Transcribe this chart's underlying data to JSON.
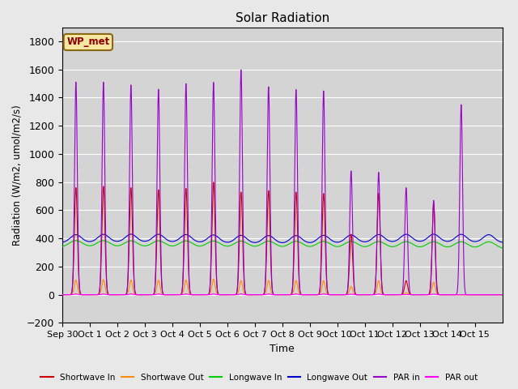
{
  "title": "Solar Radiation",
  "ylabel": "Radiation (W/m2, umol/m2/s)",
  "xlabel": "Time",
  "ylim": [
    -200,
    1900
  ],
  "yticks": [
    -200,
    0,
    200,
    400,
    600,
    800,
    1000,
    1200,
    1400,
    1600,
    1800
  ],
  "background_color": "#e8e8e8",
  "plot_bg_color": "#d4d4d4",
  "annotation_text": "WP_met",
  "annotation_bg": "#f5e6a0",
  "annotation_border": "#8b6914",
  "legend_entries": [
    "Shortwave In",
    "Shortwave Out",
    "Longwave In",
    "Longwave Out",
    "PAR in",
    "PAR out"
  ],
  "line_colors": [
    "#cc0000",
    "#ff8c00",
    "#00cc00",
    "#0000cc",
    "#9900cc",
    "#ff00ff"
  ],
  "n_days": 16,
  "points_per_day": 144
}
